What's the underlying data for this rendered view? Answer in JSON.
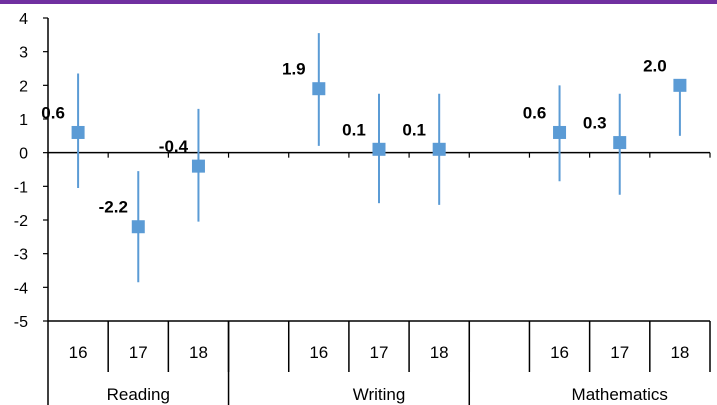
{
  "chart_data": {
    "type": "scatter",
    "groups": [
      "Reading",
      "Writing",
      "Mathematics"
    ],
    "categories": [
      "16",
      "17",
      "18"
    ],
    "points": [
      {
        "group": "Reading",
        "category": "16",
        "value": 0.6,
        "label": "0.6",
        "low": -1.05,
        "high": 2.35
      },
      {
        "group": "Reading",
        "category": "17",
        "value": -2.2,
        "label": "-2.2",
        "low": -3.85,
        "high": -0.55
      },
      {
        "group": "Reading",
        "category": "18",
        "value": -0.4,
        "label": "-0.4",
        "low": -2.05,
        "high": 1.3
      },
      {
        "group": "Writing",
        "category": "16",
        "value": 1.9,
        "label": "1.9",
        "low": 0.2,
        "high": 3.55
      },
      {
        "group": "Writing",
        "category": "17",
        "value": 0.1,
        "label": "0.1",
        "low": -1.5,
        "high": 1.75
      },
      {
        "group": "Writing",
        "category": "18",
        "value": 0.1,
        "label": "0.1",
        "low": -1.55,
        "high": 1.75
      },
      {
        "group": "Mathematics",
        "category": "16",
        "value": 0.6,
        "label": "0.6",
        "low": -0.85,
        "high": 2.0
      },
      {
        "group": "Mathematics",
        "category": "17",
        "value": 0.3,
        "label": "0.3",
        "low": -1.25,
        "high": 1.75
      },
      {
        "group": "Mathematics",
        "category": "18",
        "value": 2.0,
        "label": "2.0",
        "low": 0.5,
        "high": 2.0
      }
    ],
    "yticks": [
      "4",
      "3",
      "2",
      "1",
      "0",
      "-1",
      "-2",
      "-3",
      "-4",
      "-5"
    ],
    "ylim": [
      -5,
      4
    ],
    "grid": false,
    "colors": {
      "marker": "#5B9BD5",
      "top_rule": "#7030A0",
      "axis": "#000000",
      "zero_line": "#000000"
    }
  }
}
